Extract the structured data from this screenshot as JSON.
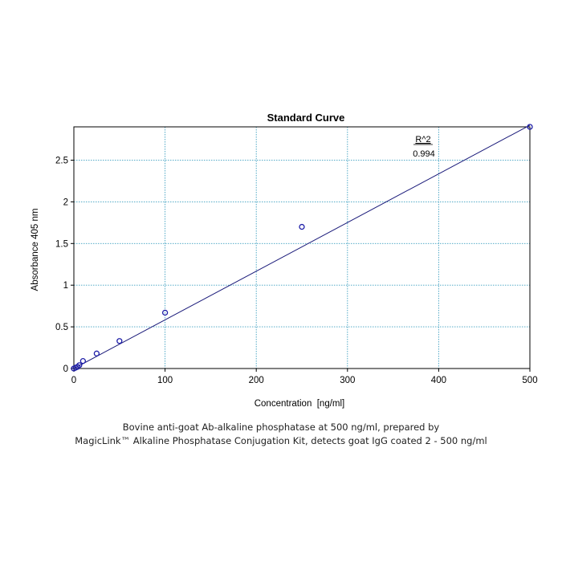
{
  "chart_data": {
    "type": "scatter",
    "title": "Standard Curve",
    "xlabel": "Concentration  [ng/ml]",
    "ylabel": "Absorbance 405 nm",
    "xlim": [
      0,
      500
    ],
    "ylim": [
      0,
      2.9
    ],
    "xticks": [
      0,
      100,
      200,
      300,
      400,
      500
    ],
    "xtick_labels": [
      "0",
      "100",
      "200",
      "300",
      "400",
      "500"
    ],
    "yticks": [
      0,
      0.5,
      1,
      1.5,
      2,
      2.5
    ],
    "ytick_labels": [
      "0",
      "0.5",
      "1",
      "1.5",
      "2",
      "2.5"
    ],
    "grid": true,
    "legend": "none",
    "series": [
      {
        "points": [
          {
            "x": 0,
            "y": 0.0
          },
          {
            "x": 2,
            "y": 0.01
          },
          {
            "x": 4,
            "y": 0.02
          },
          {
            "x": 6,
            "y": 0.04
          },
          {
            "x": 10,
            "y": 0.09
          },
          {
            "x": 25,
            "y": 0.18
          },
          {
            "x": 50,
            "y": 0.33
          },
          {
            "x": 100,
            "y": 0.67
          },
          {
            "x": 250,
            "y": 1.7
          },
          {
            "x": 500,
            "y": 2.9
          }
        ],
        "fit_line": {
          "x": [
            0,
            500
          ],
          "y": [
            0.0,
            2.92
          ]
        }
      }
    ],
    "annotations": [
      {
        "label": "R^2",
        "value": "0.994"
      }
    ],
    "colors": {
      "marker": "#1f1fa8",
      "fit_line": "#1a1a7a",
      "grid": "#3fa0c0",
      "axis": "#000000"
    }
  },
  "caption": {
    "line1": "Bovine anti-goat Ab-alkaline phosphatase at 500 ng/ml, prepared by",
    "line2": "MagicLink™ Alkaline Phosphatase Conjugation Kit, detects goat IgG coated 2 - 500 ng/ml"
  }
}
